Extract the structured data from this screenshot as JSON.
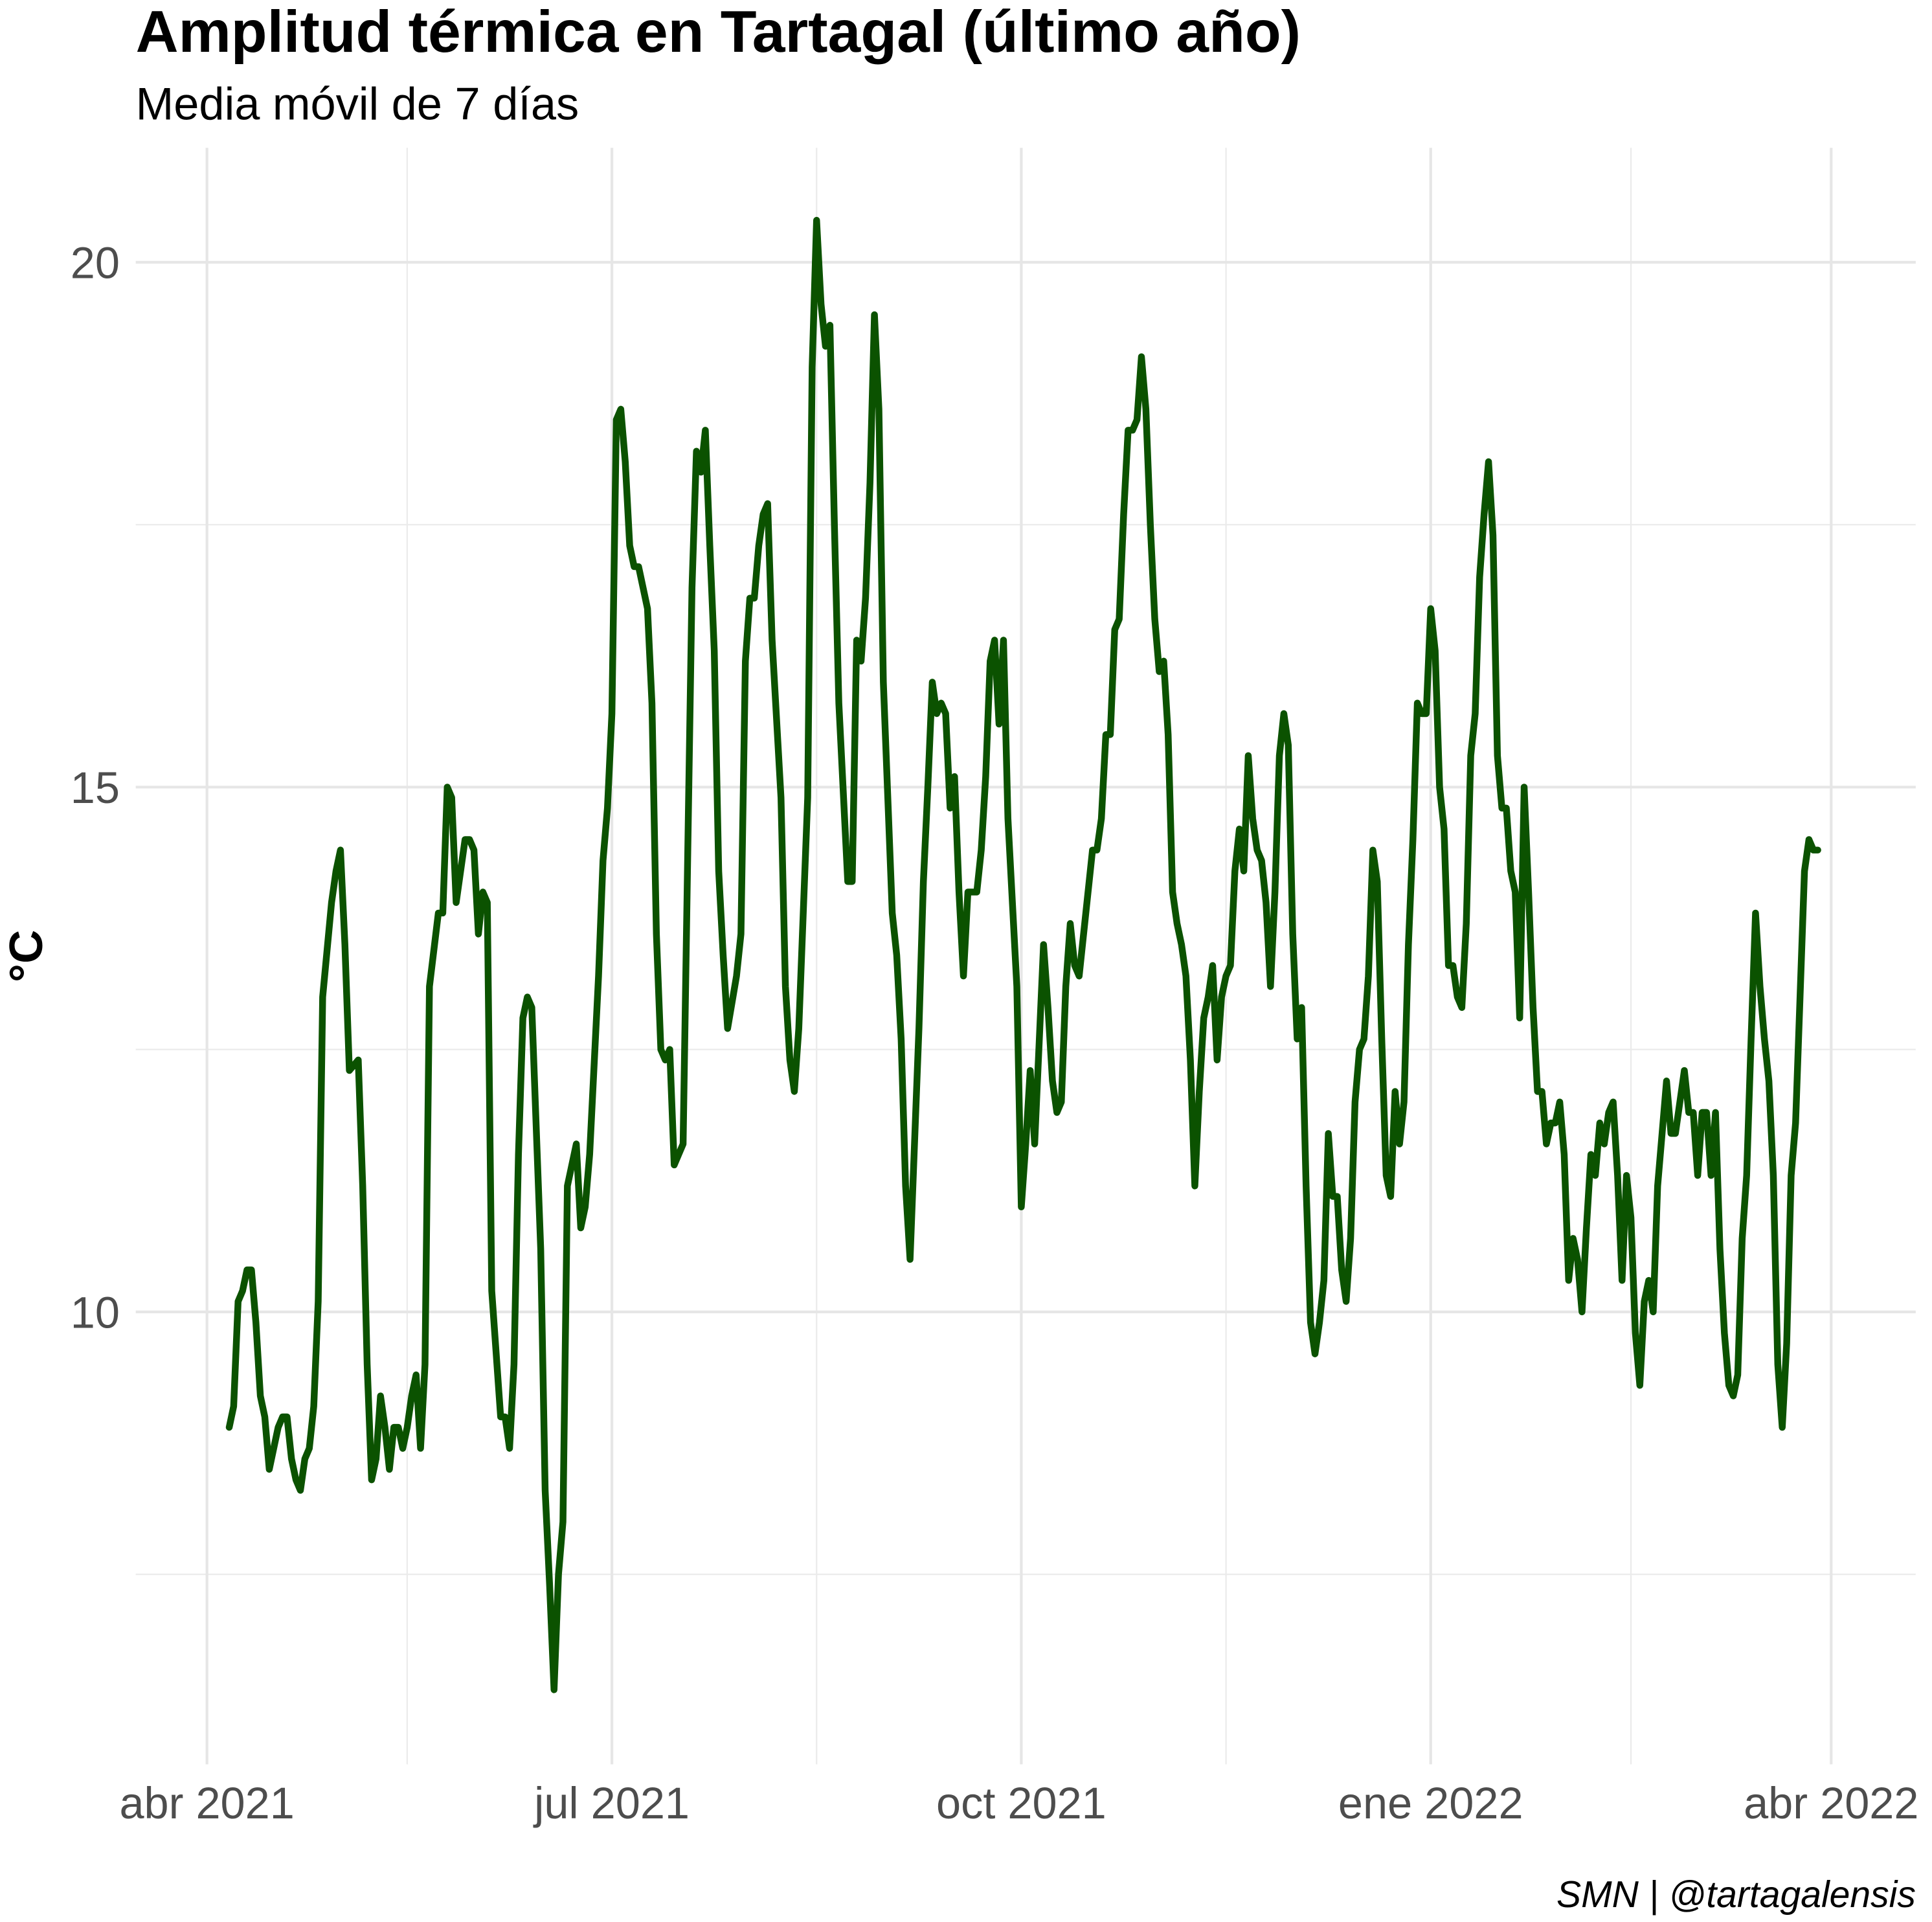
{
  "chart_data": {
    "type": "line",
    "title": "Amplitud térmica en Tartagal (último año)",
    "subtitle": "Media móvil de 7 días",
    "y_label": "°C",
    "caption": "SMN | @tartagalensis",
    "color": "#0b5200",
    "grid": true,
    "xlim": [
      "2021-03-16",
      "2022-04-20"
    ],
    "ylim": [
      5.69,
      21.09
    ],
    "xticks": [
      {
        "value": "2021-04-01",
        "label": "abr 2021"
      },
      {
        "value": "2021-07-01",
        "label": "jul 2021"
      },
      {
        "value": "2021-10-01",
        "label": "oct 2021"
      },
      {
        "value": "2022-01-01",
        "label": "ene 2022"
      },
      {
        "value": "2022-04-01",
        "label": "abr 2022"
      }
    ],
    "xminor": [
      "2021-05-16",
      "2021-08-16",
      "2021-11-16",
      "2022-02-15"
    ],
    "yticks": [
      10,
      15,
      20
    ],
    "yminor": [
      7.5,
      12.5,
      17.5
    ],
    "x": [
      "2021-04-06",
      "2021-04-07",
      "2021-04-08",
      "2021-04-09",
      "2021-04-10",
      "2021-04-11",
      "2021-04-12",
      "2021-04-13",
      "2021-04-14",
      "2021-04-15",
      "2021-04-16",
      "2021-04-17",
      "2021-04-18",
      "2021-04-19",
      "2021-04-20",
      "2021-04-21",
      "2021-04-22",
      "2021-04-23",
      "2021-04-24",
      "2021-04-25",
      "2021-04-26",
      "2021-04-27",
      "2021-04-29",
      "2021-04-30",
      "2021-05-01",
      "2021-05-02",
      "2021-05-03",
      "2021-05-05",
      "2021-05-06",
      "2021-05-07",
      "2021-05-08",
      "2021-05-09",
      "2021-05-10",
      "2021-05-11",
      "2021-05-12",
      "2021-05-13",
      "2021-05-14",
      "2021-05-15",
      "2021-05-16",
      "2021-05-17",
      "2021-05-18",
      "2021-05-19",
      "2021-05-20",
      "2021-05-21",
      "2021-05-23",
      "2021-05-24",
      "2021-05-25",
      "2021-05-26",
      "2021-05-27",
      "2021-05-29",
      "2021-05-30",
      "2021-05-31",
      "2021-06-01",
      "2021-06-02",
      "2021-06-03",
      "2021-06-04",
      "2021-06-06",
      "2021-06-07",
      "2021-06-08",
      "2021-06-09",
      "2021-06-10",
      "2021-06-11",
      "2021-06-12",
      "2021-06-13",
      "2021-06-15",
      "2021-06-16",
      "2021-06-17",
      "2021-06-18",
      "2021-06-19",
      "2021-06-20",
      "2021-06-21",
      "2021-06-23",
      "2021-06-24",
      "2021-06-25",
      "2021-06-26",
      "2021-06-28",
      "2021-06-29",
      "2021-06-30",
      "2021-07-01",
      "2021-07-02",
      "2021-07-03",
      "2021-07-04",
      "2021-07-05",
      "2021-07-06",
      "2021-07-07",
      "2021-07-08",
      "2021-07-09",
      "2021-07-10",
      "2021-07-11",
      "2021-07-12",
      "2021-07-13",
      "2021-07-14",
      "2021-07-15",
      "2021-07-16",
      "2021-07-17",
      "2021-07-19",
      "2021-07-20",
      "2021-07-21",
      "2021-07-22",
      "2021-07-23",
      "2021-07-24",
      "2021-07-25",
      "2021-07-26",
      "2021-07-27",
      "2021-07-29",
      "2021-07-30",
      "2021-07-31",
      "2021-08-01",
      "2021-08-02",
      "2021-08-03",
      "2021-08-04",
      "2021-08-05",
      "2021-08-06",
      "2021-08-08",
      "2021-08-09",
      "2021-08-10",
      "2021-08-11",
      "2021-08-12",
      "2021-08-14",
      "2021-08-15",
      "2021-08-16",
      "2021-08-17",
      "2021-08-18",
      "2021-08-19",
      "2021-08-20",
      "2021-08-21",
      "2021-08-23",
      "2021-08-24",
      "2021-08-25",
      "2021-08-26",
      "2021-08-27",
      "2021-08-28",
      "2021-08-29",
      "2021-08-30",
      "2021-08-31",
      "2021-09-02",
      "2021-09-03",
      "2021-09-04",
      "2021-09-05",
      "2021-09-06",
      "2021-09-08",
      "2021-09-09",
      "2021-09-10",
      "2021-09-11",
      "2021-09-12",
      "2021-09-13",
      "2021-09-14",
      "2021-09-15",
      "2021-09-16",
      "2021-09-17",
      "2021-09-18",
      "2021-09-19",
      "2021-09-21",
      "2021-09-22",
      "2021-09-23",
      "2021-09-24",
      "2021-09-25",
      "2021-09-26",
      "2021-09-27",
      "2021-09-28",
      "2021-09-30",
      "2021-10-01",
      "2021-10-02",
      "2021-10-03",
      "2021-10-04",
      "2021-10-06",
      "2021-10-07",
      "2021-10-08",
      "2021-10-09",
      "2021-10-10",
      "2021-10-11",
      "2021-10-12",
      "2021-10-13",
      "2021-10-14",
      "2021-10-15",
      "2021-10-17",
      "2021-10-18",
      "2021-10-19",
      "2021-10-20",
      "2021-10-21",
      "2021-10-22",
      "2021-10-23",
      "2021-10-24",
      "2021-10-25",
      "2021-10-26",
      "2021-10-27",
      "2021-10-28",
      "2021-10-29",
      "2021-10-30",
      "2021-10-31",
      "2021-11-01",
      "2021-11-02",
      "2021-11-03",
      "2021-11-04",
      "2021-11-05",
      "2021-11-06",
      "2021-11-07",
      "2021-11-08",
      "2021-11-09",
      "2021-11-10",
      "2021-11-11",
      "2021-11-12",
      "2021-11-13",
      "2021-11-14",
      "2021-11-15",
      "2021-11-16",
      "2021-11-17",
      "2021-11-18",
      "2021-11-19",
      "2021-11-20",
      "2021-11-21",
      "2021-11-22",
      "2021-11-23",
      "2021-11-24",
      "2021-11-25",
      "2021-11-26",
      "2021-11-27",
      "2021-11-28",
      "2021-11-29",
      "2021-11-30",
      "2021-12-01",
      "2021-12-02",
      "2021-12-03",
      "2021-12-04",
      "2021-12-05",
      "2021-12-06",
      "2021-12-07",
      "2021-12-08",
      "2021-12-09",
      "2021-12-10",
      "2021-12-11",
      "2021-12-12",
      "2021-12-13",
      "2021-12-14",
      "2021-12-15",
      "2021-12-16",
      "2021-12-17",
      "2021-12-18",
      "2021-12-19",
      "2021-12-20",
      "2021-12-21",
      "2021-12-22",
      "2021-12-23",
      "2021-12-24",
      "2021-12-25",
      "2021-12-26",
      "2021-12-27",
      "2021-12-28",
      "2021-12-29",
      "2021-12-30",
      "2021-12-31",
      "2022-01-01",
      "2022-01-02",
      "2022-01-03",
      "2022-01-04",
      "2022-01-05",
      "2022-01-06",
      "2022-01-07",
      "2022-01-08",
      "2022-01-09",
      "2022-01-10",
      "2022-01-11",
      "2022-01-12",
      "2022-01-13",
      "2022-01-14",
      "2022-01-15",
      "2022-01-16",
      "2022-01-17",
      "2022-01-18",
      "2022-01-19",
      "2022-01-20",
      "2022-01-21",
      "2022-01-22",
      "2022-01-23",
      "2022-01-24",
      "2022-01-25",
      "2022-01-26",
      "2022-01-27",
      "2022-01-28",
      "2022-01-29",
      "2022-01-30",
      "2022-01-31",
      "2022-02-01",
      "2022-02-02",
      "2022-02-03",
      "2022-02-04",
      "2022-02-05",
      "2022-02-06",
      "2022-02-07",
      "2022-02-08",
      "2022-02-09",
      "2022-02-10",
      "2022-02-11",
      "2022-02-12",
      "2022-02-13",
      "2022-02-14",
      "2022-02-15",
      "2022-02-16",
      "2022-02-17",
      "2022-02-18",
      "2022-02-19",
      "2022-02-20",
      "2022-02-21",
      "2022-02-22",
      "2022-02-23",
      "2022-02-24",
      "2022-02-25",
      "2022-02-26",
      "2022-02-27",
      "2022-02-28",
      "2022-03-01",
      "2022-03-02",
      "2022-03-03",
      "2022-03-04",
      "2022-03-05",
      "2022-03-06",
      "2022-03-07",
      "2022-03-08",
      "2022-03-09",
      "2022-03-10",
      "2022-03-11",
      "2022-03-12",
      "2022-03-13",
      "2022-03-14",
      "2022-03-15",
      "2022-03-16",
      "2022-03-17",
      "2022-03-18",
      "2022-03-19",
      "2022-03-20",
      "2022-03-21",
      "2022-03-22",
      "2022-03-23",
      "2022-03-24",
      "2022-03-25",
      "2022-03-26",
      "2022-03-27",
      "2022-03-28",
      "2022-03-29"
    ],
    "values": [
      8.9,
      9.1,
      10.1,
      10.2,
      10.4,
      10.4,
      9.9,
      9.2,
      9.0,
      8.5,
      8.7,
      8.9,
      9.0,
      9.0,
      8.6,
      8.4,
      8.3,
      8.6,
      8.7,
      9.1,
      10.1,
      13.0,
      13.9,
      14.2,
      14.4,
      13.5,
      12.3,
      12.4,
      11.2,
      9.5,
      8.4,
      8.6,
      9.2,
      8.9,
      8.5,
      8.9,
      8.9,
      8.7,
      8.9,
      9.2,
      9.4,
      8.7,
      9.5,
      13.1,
      13.8,
      13.8,
      15.0,
      14.9,
      13.9,
      14.5,
      14.5,
      14.4,
      13.6,
      14.0,
      13.9,
      10.2,
      9.0,
      9.0,
      8.7,
      9.5,
      11.5,
      12.8,
      13.0,
      12.9,
      10.6,
      8.3,
      7.4,
      6.4,
      7.5,
      8.0,
      11.2,
      11.6,
      10.8,
      11.0,
      11.5,
      13.2,
      14.3,
      14.8,
      15.7,
      18.5,
      18.6,
      18.1,
      17.3,
      17.1,
      17.1,
      16.9,
      16.7,
      15.8,
      13.6,
      12.5,
      12.4,
      12.5,
      11.4,
      11.5,
      11.6,
      16.9,
      18.2,
      18.0,
      18.4,
      17.3,
      16.3,
      14.2,
      13.4,
      12.7,
      13.2,
      13.6,
      16.2,
      16.8,
      16.8,
      17.3,
      17.6,
      17.7,
      16.4,
      14.9,
      13.1,
      12.4,
      12.1,
      12.7,
      14.9,
      19.0,
      20.4,
      19.6,
      19.2,
      19.4,
      17.5,
      15.8,
      14.1,
      14.1,
      16.4,
      16.2,
      16.8,
      17.9,
      19.5,
      18.6,
      16.0,
      13.8,
      13.4,
      12.6,
      11.2,
      10.5,
      12.7,
      14.1,
      15.0,
      16.0,
      15.7,
      15.8,
      15.7,
      14.8,
      15.1,
      14.0,
      13.2,
      14.0,
      14.0,
      14.4,
      15.1,
      16.2,
      16.4,
      15.6,
      16.4,
      14.7,
      13.1,
      11.0,
      11.6,
      12.3,
      11.6,
      13.5,
      12.9,
      12.2,
      11.9,
      12.0,
      13.1,
      13.7,
      13.3,
      13.2,
      13.6,
      14.4,
      14.4,
      14.7,
      15.5,
      15.5,
      16.5,
      16.6,
      17.6,
      18.4,
      18.4,
      18.5,
      19.1,
      18.6,
      17.5,
      16.6,
      16.1,
      16.2,
      15.5,
      14.0,
      13.7,
      13.5,
      13.2,
      12.4,
      11.2,
      12.1,
      12.8,
      13.0,
      13.3,
      12.4,
      13.0,
      13.2,
      13.3,
      14.2,
      14.6,
      14.2,
      15.3,
      14.7,
      14.4,
      14.3,
      13.9,
      13.1,
      14.0,
      15.3,
      15.7,
      15.4,
      13.6,
      12.6,
      12.9,
      11.2,
      9.9,
      9.6,
      9.9,
      10.3,
      11.7,
      11.1,
      11.1,
      10.4,
      10.1,
      10.7,
      12.0,
      12.5,
      12.6,
      13.2,
      14.4,
      14.1,
      12.6,
      11.3,
      11.1,
      12.1,
      11.6,
      12.0,
      13.5,
      14.5,
      15.8,
      15.7,
      15.7,
      16.7,
      16.3,
      15.0,
      14.6,
      13.3,
      13.3,
      13.0,
      12.9,
      13.7,
      15.3,
      15.7,
      17.0,
      17.6,
      18.1,
      17.4,
      15.3,
      14.8,
      14.8,
      14.2,
      14.0,
      12.8,
      15.0,
      14.0,
      12.9,
      12.1,
      12.1,
      11.6,
      11.8,
      11.8,
      12.0,
      11.5,
      10.3,
      10.7,
      10.5,
      10.0,
      10.8,
      11.5,
      11.3,
      11.8,
      11.6,
      11.9,
      12.0,
      11.3,
      10.3,
      11.3,
      10.9,
      9.8,
      9.3,
      10.1,
      10.3,
      10.0,
      11.2,
      11.7,
      12.2,
      11.7,
      11.7,
      12.0,
      12.3,
      11.9,
      11.9,
      11.3,
      11.9,
      11.9,
      11.3,
      11.9,
      10.6,
      9.8,
      9.3,
      9.2,
      9.4,
      10.7,
      11.3,
      12.6,
      13.8,
      13.1,
      12.6,
      12.2,
      11.3,
      9.5,
      8.9,
      9.7,
      11.3,
      11.8,
      13.0,
      14.2,
      14.5,
      14.4,
      14.4
    ]
  }
}
